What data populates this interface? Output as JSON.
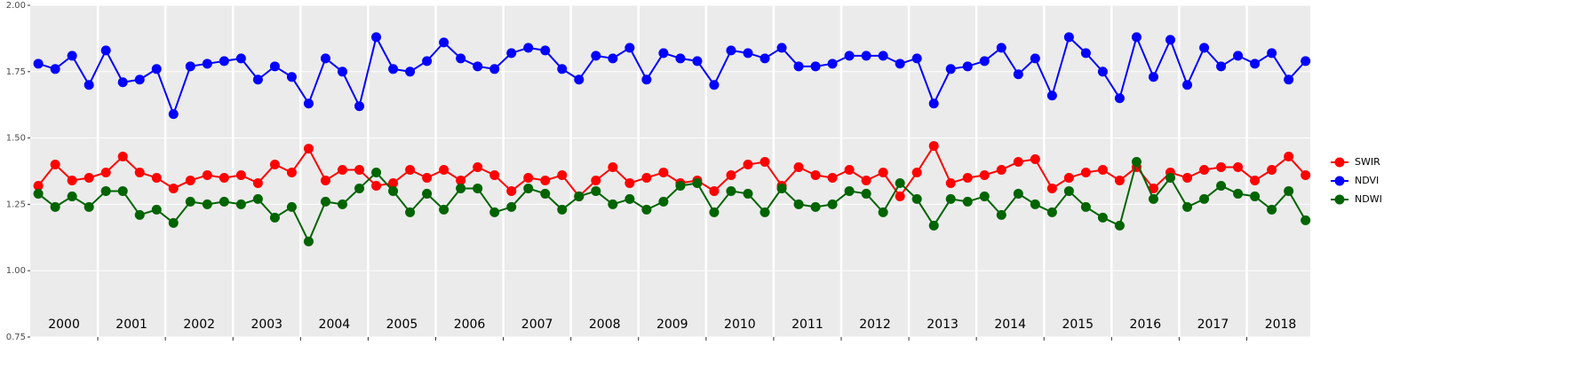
{
  "chart_data": {
    "type": "line",
    "x": [
      2000.12,
      2000.37,
      2000.62,
      2000.87,
      2001.12,
      2001.37,
      2001.62,
      2001.87,
      2002.12,
      2002.37,
      2002.62,
      2002.87,
      2003.12,
      2003.37,
      2003.62,
      2003.87,
      2004.12,
      2004.37,
      2004.62,
      2004.87,
      2005.12,
      2005.37,
      2005.62,
      2005.87,
      2006.12,
      2006.37,
      2006.62,
      2006.87,
      2007.12,
      2007.37,
      2007.62,
      2007.87,
      2008.12,
      2008.37,
      2008.62,
      2008.87,
      2009.12,
      2009.37,
      2009.62,
      2009.87,
      2010.12,
      2010.37,
      2010.62,
      2010.87,
      2011.12,
      2011.37,
      2011.62,
      2011.87,
      2012.12,
      2012.37,
      2012.62,
      2012.87,
      2013.12,
      2013.37,
      2013.62,
      2013.87,
      2014.12,
      2014.37,
      2014.62,
      2014.87,
      2015.12,
      2015.37,
      2015.62,
      2015.87,
      2016.12,
      2016.37,
      2016.62,
      2016.87,
      2017.12,
      2017.37,
      2017.62,
      2017.87,
      2018.12,
      2018.37,
      2018.62,
      2018.87
    ],
    "series": [
      {
        "name": "SWIR",
        "color": "#ff0000",
        "values": [
          1.32,
          1.4,
          1.34,
          1.35,
          1.37,
          1.43,
          1.37,
          1.35,
          1.31,
          1.34,
          1.36,
          1.35,
          1.36,
          1.33,
          1.4,
          1.37,
          1.46,
          1.34,
          1.38,
          1.38,
          1.32,
          1.33,
          1.38,
          1.35,
          1.38,
          1.34,
          1.39,
          1.36,
          1.3,
          1.35,
          1.34,
          1.36,
          1.28,
          1.34,
          1.39,
          1.33,
          1.35,
          1.37,
          1.33,
          1.34,
          1.3,
          1.36,
          1.4,
          1.41,
          1.32,
          1.39,
          1.36,
          1.35,
          1.38,
          1.34,
          1.37,
          1.28,
          1.37,
          1.47,
          1.33,
          1.35,
          1.36,
          1.38,
          1.41,
          1.42,
          1.31,
          1.35,
          1.37,
          1.38,
          1.34,
          1.39,
          1.31,
          1.37,
          1.35,
          1.38,
          1.39,
          1.39,
          1.34,
          1.38,
          1.43,
          1.36
        ]
      },
      {
        "name": "NDVI",
        "color": "#0000ff",
        "values": [
          1.78,
          1.76,
          1.81,
          1.7,
          1.83,
          1.71,
          1.72,
          1.76,
          1.59,
          1.77,
          1.78,
          1.79,
          1.8,
          1.72,
          1.77,
          1.73,
          1.63,
          1.8,
          1.75,
          1.62,
          1.88,
          1.76,
          1.75,
          1.79,
          1.86,
          1.8,
          1.77,
          1.76,
          1.82,
          1.84,
          1.83,
          1.76,
          1.72,
          1.81,
          1.8,
          1.84,
          1.72,
          1.82,
          1.8,
          1.79,
          1.7,
          1.83,
          1.82,
          1.8,
          1.84,
          1.77,
          1.77,
          1.78,
          1.81,
          1.81,
          1.81,
          1.78,
          1.8,
          1.63,
          1.76,
          1.77,
          1.79,
          1.84,
          1.74,
          1.8,
          1.66,
          1.88,
          1.82,
          1.75,
          1.65,
          1.88,
          1.73,
          1.87,
          1.7,
          1.84,
          1.77,
          1.81,
          1.78,
          1.82,
          1.72,
          1.79
        ]
      },
      {
        "name": "NDWI",
        "color": "#006400",
        "values": [
          1.29,
          1.24,
          1.28,
          1.24,
          1.3,
          1.3,
          1.21,
          1.23,
          1.18,
          1.26,
          1.25,
          1.26,
          1.25,
          1.27,
          1.2,
          1.24,
          1.11,
          1.26,
          1.25,
          1.31,
          1.37,
          1.3,
          1.22,
          1.29,
          1.23,
          1.31,
          1.31,
          1.22,
          1.24,
          1.31,
          1.29,
          1.23,
          1.28,
          1.3,
          1.25,
          1.27,
          1.23,
          1.26,
          1.32,
          1.33,
          1.22,
          1.3,
          1.29,
          1.22,
          1.31,
          1.25,
          1.24,
          1.25,
          1.3,
          1.29,
          1.22,
          1.33,
          1.27,
          1.17,
          1.27,
          1.26,
          1.28,
          1.21,
          1.29,
          1.25,
          1.22,
          1.3,
          1.24,
          1.2,
          1.17,
          1.41,
          1.27,
          1.35,
          1.24,
          1.27,
          1.32,
          1.29,
          1.28,
          1.23,
          1.3,
          1.19
        ]
      }
    ],
    "year_labels": [
      "2000",
      "2001",
      "2002",
      "2003",
      "2004",
      "2005",
      "2006",
      "2007",
      "2008",
      "2009",
      "2010",
      "2011",
      "2012",
      "2013",
      "2014",
      "2015",
      "2016",
      "2017",
      "2018"
    ],
    "xlim": [
      2000,
      2018.94
    ],
    "xticks": [
      2001,
      2002,
      2003,
      2004,
      2005,
      2006,
      2007,
      2008,
      2009,
      2010,
      2011,
      2012,
      2013,
      2014,
      2015,
      2016,
      2017,
      2018
    ],
    "ylim": [
      0.75,
      2.0
    ],
    "yticks": [
      {
        "value": 0.75,
        "label": "0.75"
      },
      {
        "value": 1.0,
        "label": "1.00"
      },
      {
        "value": 1.25,
        "label": "1.25"
      },
      {
        "value": 1.5,
        "label": "1.50"
      },
      {
        "value": 1.75,
        "label": "1.75"
      },
      {
        "value": 2.0,
        "label": "2.00"
      }
    ],
    "grid": true
  }
}
